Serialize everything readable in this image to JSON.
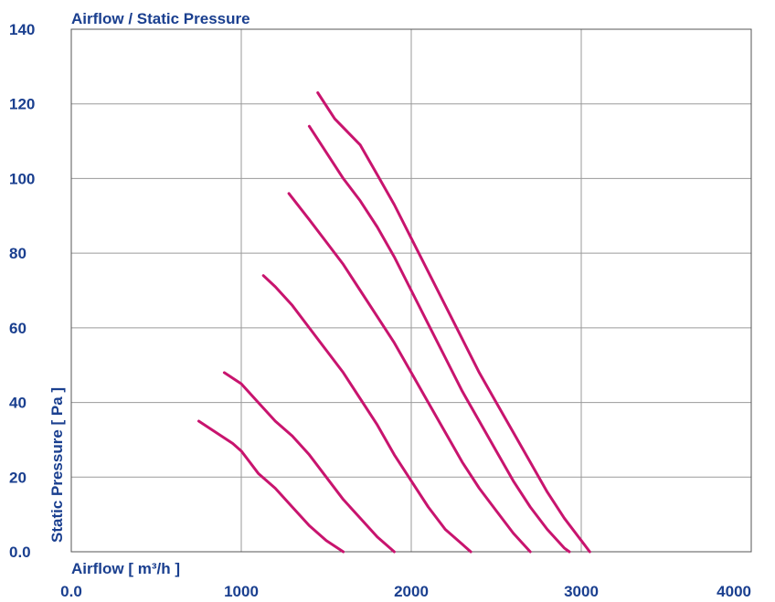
{
  "chart_data": {
    "type": "line",
    "title": "Airflow / Static Pressure",
    "xlabel": "Airflow [ m³/h ]",
    "ylabel": "Static Pressure [ Pa ]",
    "xlim": [
      0,
      4000
    ],
    "ylim": [
      0,
      140
    ],
    "x_ticks": [
      "0.0",
      "1000",
      "2000",
      "3000",
      "4000"
    ],
    "y_ticks": [
      "0.0",
      "20",
      "40",
      "60",
      "80",
      "100",
      "120",
      "140"
    ],
    "grid": true,
    "line_color": "#c8146e",
    "series": [
      {
        "x": [
          750,
          850,
          950,
          1000,
          1050,
          1100,
          1200,
          1300,
          1400,
          1500,
          1600
        ],
        "y": [
          35,
          32,
          29,
          27,
          24,
          21,
          17,
          12,
          7,
          3,
          0
        ]
      },
      {
        "x": [
          900,
          1000,
          1100,
          1200,
          1300,
          1400,
          1500,
          1600,
          1700,
          1800,
          1900
        ],
        "y": [
          48,
          45,
          40,
          35,
          31,
          26,
          20,
          14,
          9,
          4,
          0
        ]
      },
      {
        "x": [
          1130,
          1200,
          1300,
          1400,
          1500,
          1600,
          1700,
          1800,
          1900,
          2000,
          2100,
          2200,
          2300,
          2350
        ],
        "y": [
          74,
          71,
          66,
          60,
          54,
          48,
          41,
          34,
          26,
          19,
          12,
          6,
          2,
          0
        ]
      },
      {
        "x": [
          1280,
          1400,
          1500,
          1600,
          1700,
          1800,
          1900,
          2000,
          2100,
          2200,
          2300,
          2400,
          2500,
          2600,
          2700
        ],
        "y": [
          96,
          89,
          83,
          77,
          70,
          63,
          56,
          48,
          40,
          32,
          24,
          17,
          11,
          5,
          0
        ]
      },
      {
        "x": [
          1400,
          1500,
          1600,
          1700,
          1800,
          1900,
          2000,
          2100,
          2200,
          2300,
          2400,
          2500,
          2600,
          2700,
          2800,
          2900,
          2930
        ],
        "y": [
          114,
          107,
          100,
          94,
          87,
          79,
          70,
          61,
          52,
          43,
          35,
          27,
          19,
          12,
          6,
          1,
          0
        ]
      },
      {
        "x": [
          1450,
          1550,
          1700,
          1800,
          1900,
          2000,
          2100,
          2200,
          2300,
          2400,
          2500,
          2600,
          2700,
          2800,
          2900,
          3000,
          3050
        ],
        "y": [
          123,
          116,
          109,
          101,
          93,
          84,
          75,
          66,
          57,
          48,
          40,
          32,
          24,
          16,
          9,
          3,
          0
        ]
      }
    ]
  }
}
